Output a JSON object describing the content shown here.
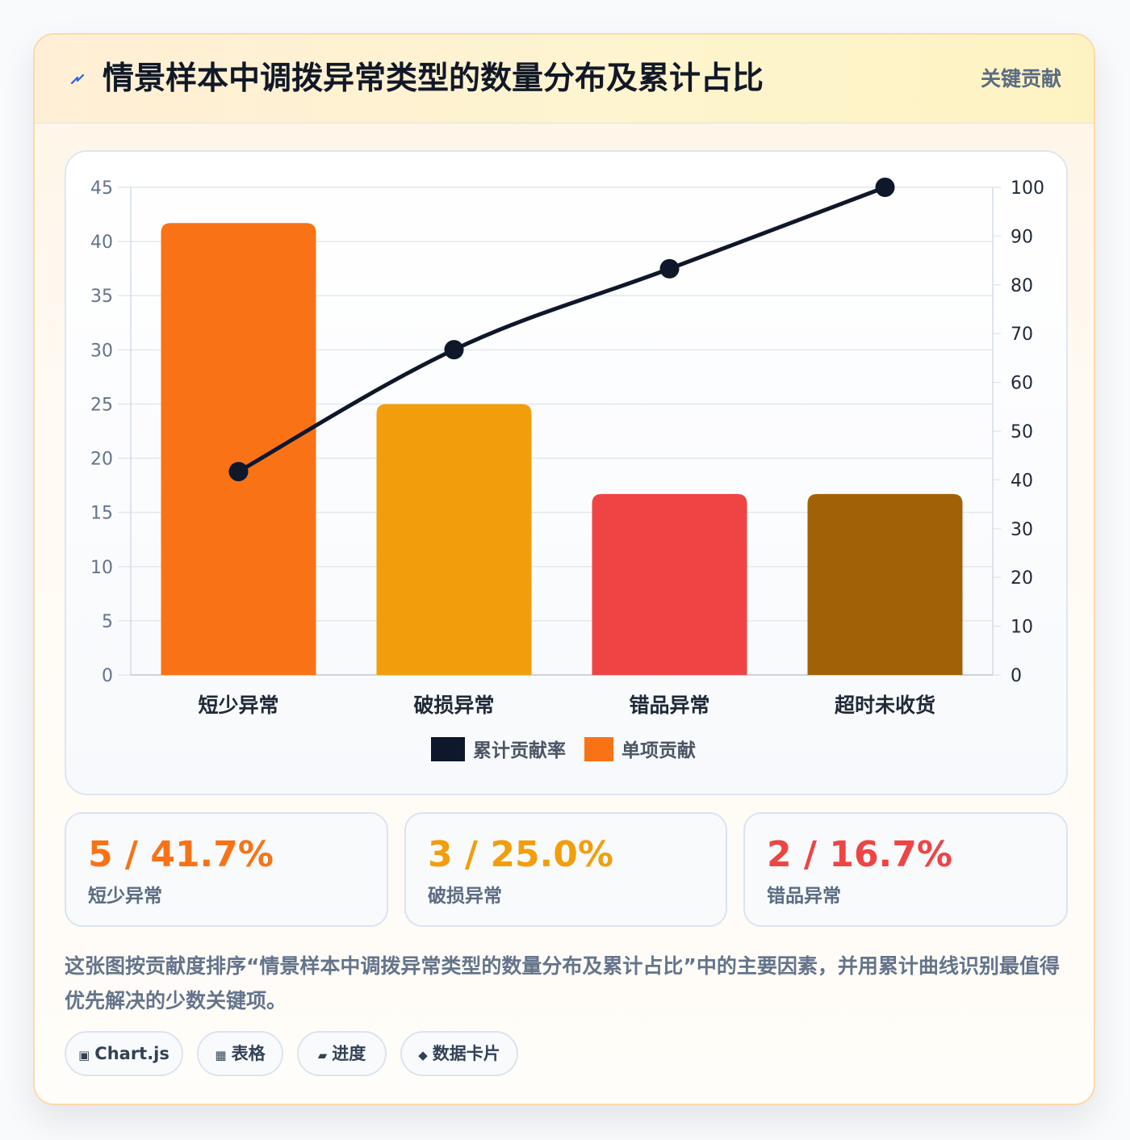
{
  "header": {
    "icon": "lightning-icon",
    "title": "情景样本中调拨异常类型的数量分布及累计占比",
    "tag": "关键贡献"
  },
  "chart_data": {
    "type": "bar",
    "categories": [
      "短少异常",
      "破损异常",
      "错品异常",
      "超时未收货"
    ],
    "series": [
      {
        "name": "单项贡献",
        "type": "bar",
        "axis": "left",
        "values": [
          41.7,
          25.0,
          16.7,
          16.7
        ],
        "colors": [
          "#f97316",
          "#f29e0c",
          "#ef4444",
          "#a16207"
        ]
      },
      {
        "name": "累计贡献率",
        "type": "line",
        "axis": "right",
        "values": [
          41.7,
          66.7,
          83.3,
          100
        ],
        "color": "#0f172a"
      }
    ],
    "y_left": {
      "min": 0,
      "max": 45,
      "ticks": [
        0,
        5,
        10,
        15,
        20,
        25,
        30,
        35,
        40,
        45
      ]
    },
    "y_right": {
      "min": 0,
      "max": 100,
      "ticks": [
        0,
        10,
        20,
        30,
        40,
        50,
        60,
        70,
        80,
        90,
        100
      ]
    },
    "grid": true,
    "legend_position": "bottom",
    "legend": [
      {
        "label": "累计贡献率",
        "color": "#0f172a"
      },
      {
        "label": "单项贡献",
        "color": "#f97316"
      }
    ]
  },
  "stats": [
    {
      "value": "5 / 41.7%",
      "label": "短少异常",
      "color": "#f97316"
    },
    {
      "value": "3 / 25.0%",
      "label": "破损异常",
      "color": "#f29e0c"
    },
    {
      "value": "2 / 16.7%",
      "label": "错品异常",
      "color": "#ef4444"
    }
  ],
  "description": "这张图按贡献度排序“情景样本中调拨异常类型的数量分布及累计占比”中的主要因素，并用累计曲线识别最值得优先解决的少数关键项。",
  "tags": [
    {
      "icon": "chart-square-icon",
      "glyph": "▣",
      "label": "Chart.js"
    },
    {
      "icon": "table-icon",
      "glyph": "▦",
      "label": "表格"
    },
    {
      "icon": "progress-icon",
      "glyph": "▰",
      "label": "进度"
    },
    {
      "icon": "diamond-icon",
      "glyph": "◆",
      "label": "数据卡片"
    }
  ]
}
